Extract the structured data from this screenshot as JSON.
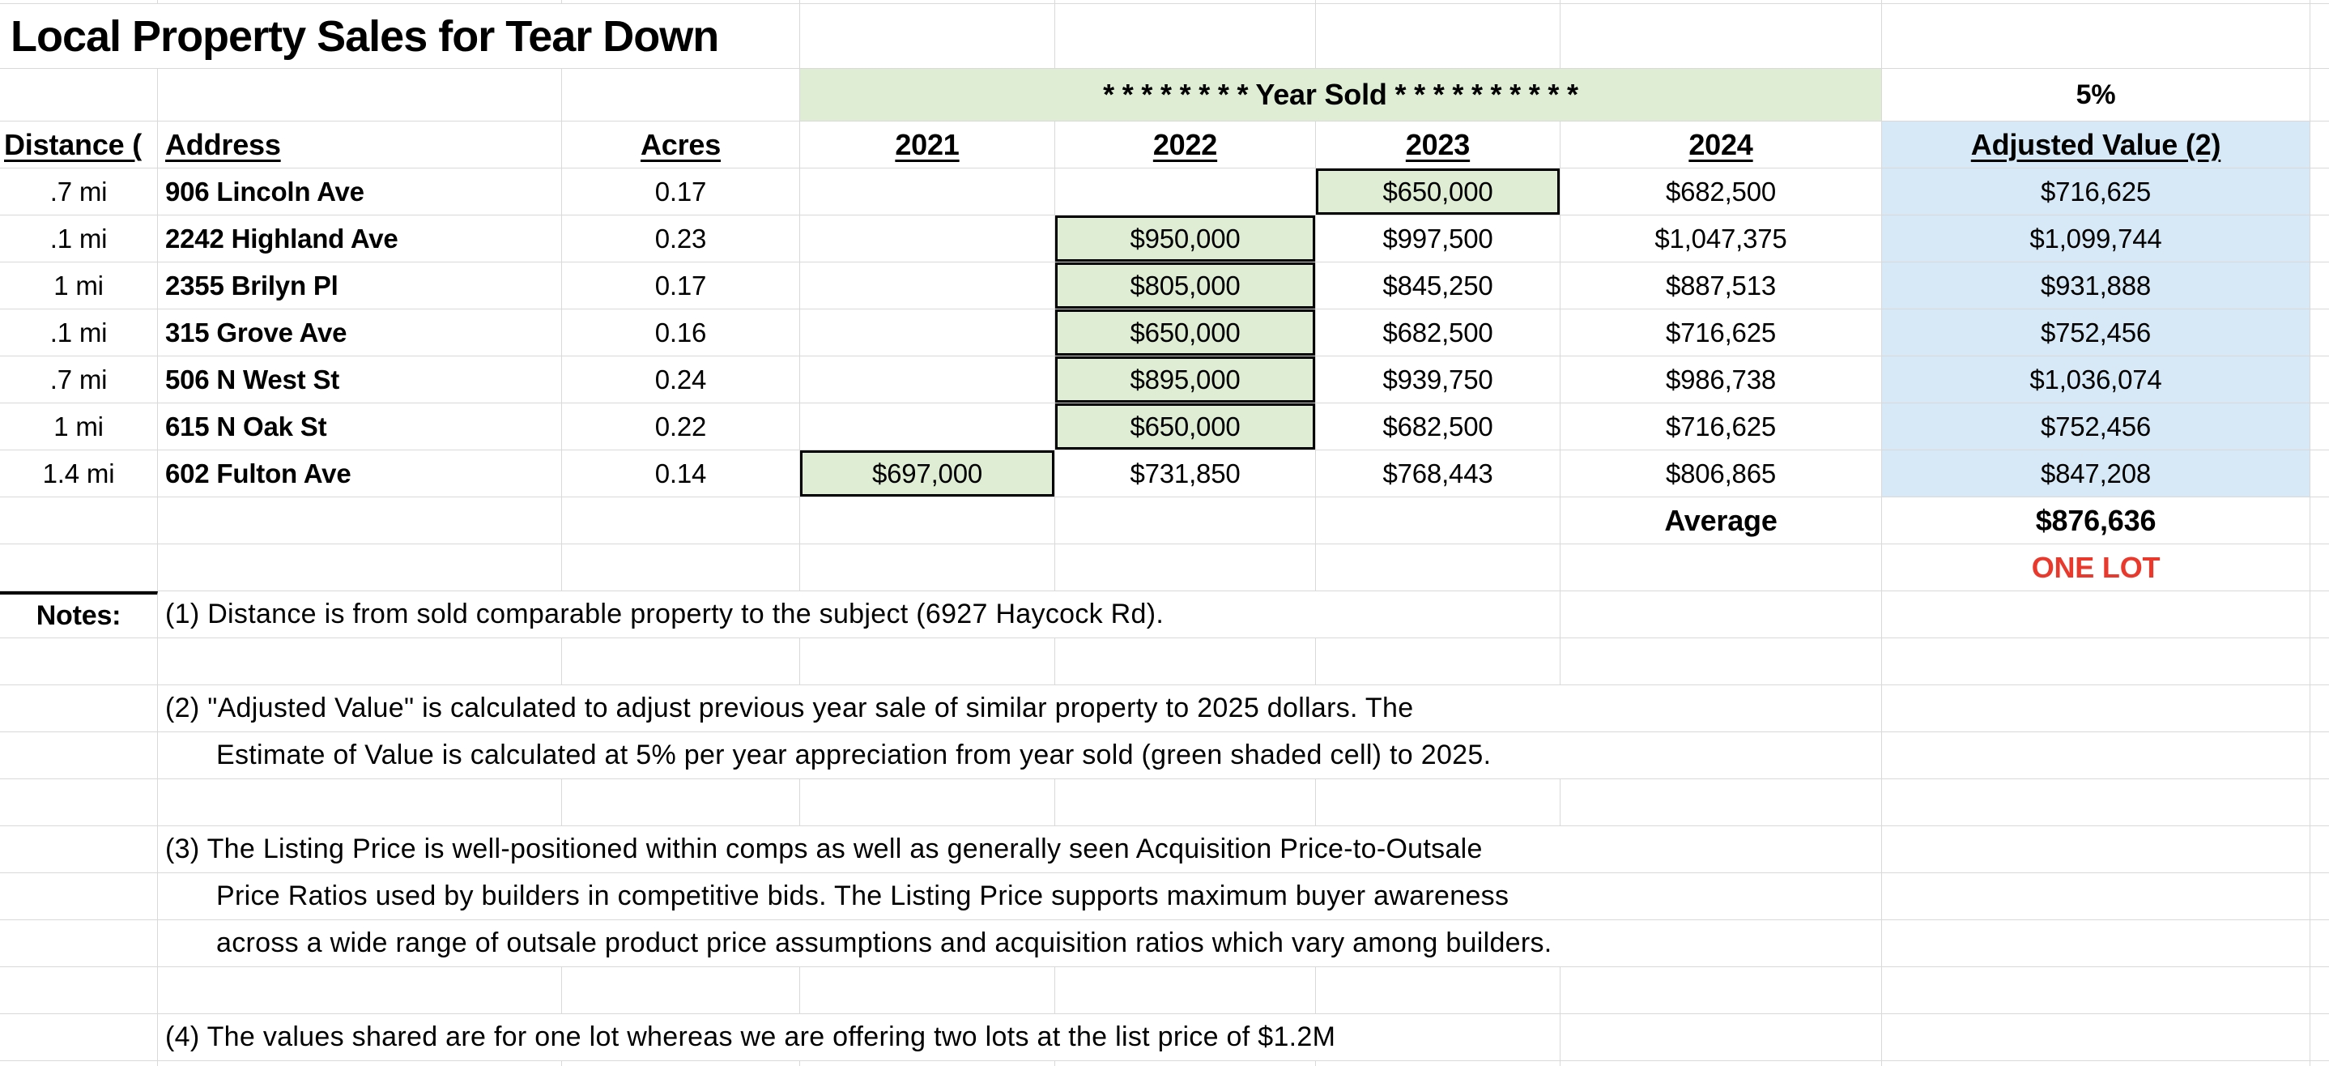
{
  "title": "Local Property Sales for Tear Down",
  "banner": {
    "year_sold_label": "* * * * * * * * Year Sold * * * * * * * * * *",
    "appreciation_rate": "5%"
  },
  "headers": {
    "distance": "Distance (",
    "address": "Address",
    "acres": "Acres",
    "y2021": "2021",
    "y2022": "2022",
    "y2023": "2023",
    "y2024": "2024",
    "adjusted": "Adjusted Value (2)"
  },
  "rows": [
    {
      "distance": ".7 mi",
      "address": "906 Lincoln Ave",
      "acres": "0.17",
      "y2021": "",
      "y2022": "",
      "y2023": "$650,000",
      "y2024": "$682,500",
      "adjusted": "$716,625",
      "sold_year": "2023"
    },
    {
      "distance": ".1 mi",
      "address": "2242 Highland Ave",
      "acres": "0.23",
      "y2021": "",
      "y2022": "$950,000",
      "y2023": "$997,500",
      "y2024": "$1,047,375",
      "adjusted": "$1,099,744",
      "sold_year": "2022"
    },
    {
      "distance": "1 mi",
      "address": "2355 Brilyn Pl",
      "acres": "0.17",
      "y2021": "",
      "y2022": "$805,000",
      "y2023": "$845,250",
      "y2024": "$887,513",
      "adjusted": "$931,888",
      "sold_year": "2022"
    },
    {
      "distance": ".1 mi",
      "address": "315 Grove Ave",
      "acres": "0.16",
      "y2021": "",
      "y2022": "$650,000",
      "y2023": "$682,500",
      "y2024": "$716,625",
      "adjusted": "$752,456",
      "sold_year": "2022"
    },
    {
      "distance": ".7 mi",
      "address": "506 N West St",
      "acres": "0.24",
      "y2021": "",
      "y2022": "$895,000",
      "y2023": "$939,750",
      "y2024": "$986,738",
      "adjusted": "$1,036,074",
      "sold_year": "2022"
    },
    {
      "distance": "1 mi",
      "address": "615 N Oak St",
      "acres": "0.22",
      "y2021": "",
      "y2022": "$650,000",
      "y2023": "$682,500",
      "y2024": "$716,625",
      "adjusted": "$752,456",
      "sold_year": "2022"
    },
    {
      "distance": "1.4 mi",
      "address": "602 Fulton Ave",
      "acres": "0.14",
      "y2021": "$697,000",
      "y2022": "$731,850",
      "y2023": "$768,443",
      "y2024": "$806,865",
      "adjusted": "$847,208",
      "sold_year": "2021"
    }
  ],
  "summary": {
    "average_label": "Average",
    "average_value": "$876,636",
    "lot_note": "ONE LOT"
  },
  "notes_label": "Notes:",
  "notes": {
    "n1": "(1) Distance is from sold comparable property to the subject (6927 Haycock Rd).",
    "n2a": "(2) \"Adjusted Value\" is calculated to adjust previous year sale of similar property to 2025 dollars. The",
    "n2b": "Estimate of Value is calculated at 5% per year appreciation from year sold (green shaded cell) to 2025.",
    "n3a": "(3) The Listing Price is well-positioned within comps as well as generally seen Acquisition Price-to-Outsale",
    "n3b": "Price Ratios used by builders in competitive bids. The Listing Price supports maximum buyer awareness",
    "n3c": "across a wide range of outsale product price assumptions and acquisition ratios which vary among builders.",
    "n4": "(4) The values shared are for one lot whereas we are offering two lots at the list price of $1.2M"
  },
  "colors": {
    "sold_cell_green": "#deedd4",
    "adjusted_column_blue": "#d7e9f6",
    "one_lot_red": "#e8392c",
    "gridline_gray": "#d9d9d9"
  }
}
